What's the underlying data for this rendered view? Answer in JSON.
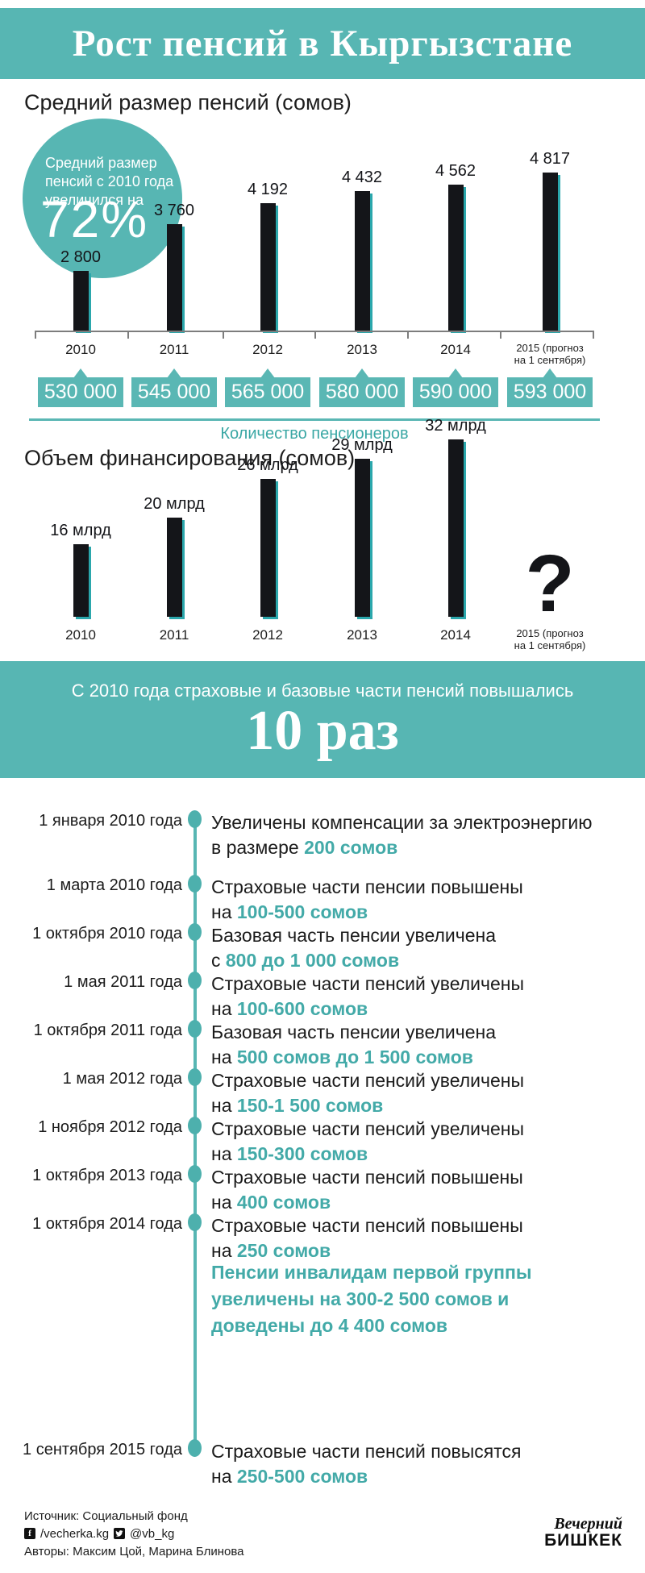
{
  "header": {
    "title": "Рост пенсий в Кыргызстане"
  },
  "colors": {
    "teal": "#57b6b3",
    "teal_accent": "#43aaa8",
    "bar_dark": "#141519",
    "bar_edge": "#2ba7ac"
  },
  "chart_data": [
    {
      "type": "bar",
      "title": "Средний размер пенсий (сомов)",
      "categories": [
        "2010",
        "2011",
        "2012",
        "2013",
        "2014",
        "2015 (прогноз\nна 1 сентября)"
      ],
      "values": [
        2800,
        3760,
        4192,
        4432,
        4562,
        4817
      ],
      "value_labels": [
        "2 800",
        "3 760",
        "4 192",
        "4 432",
        "4 562",
        "4 817"
      ],
      "annotation": {
        "text": "Средний размер\nпенсий с 2010 года\nувеличился на",
        "big": "72%"
      },
      "callouts": {
        "caption": "Количество пенсионеров",
        "values": [
          "530 000",
          "545 000",
          "565 000",
          "580 000",
          "590 000",
          "593 000"
        ]
      },
      "layout": {
        "grid": false,
        "legend": "none",
        "baseline_axis": true
      }
    },
    {
      "type": "bar",
      "title": "Объем финансирования (сомов)",
      "categories": [
        "2010",
        "2011",
        "2012",
        "2013",
        "2014",
        "2015 (прогноз\nна 1 сентября)"
      ],
      "values": [
        16,
        20,
        26,
        29,
        32,
        null
      ],
      "value_labels": [
        "16 млрд",
        "20 млрд",
        "26 млрд",
        "29 млрд",
        "32 млрд",
        "?"
      ],
      "unknown_marker": "?",
      "layout": {
        "grid": false,
        "legend": "none",
        "baseline_axis": false
      }
    }
  ],
  "banner": {
    "line1": "С 2010 года страховые и базовые части пенсий повышались",
    "line2": "10 раз"
  },
  "timeline": {
    "items": [
      {
        "date": "1 января 2010 года",
        "text": "Увеличены компенсации за электроэнергию\nв размере ",
        "accent": "200 сомов"
      },
      {
        "date": "1 марта 2010 года",
        "text": "Страховые части пенсии повышены\nна ",
        "accent": "100-500 сомов"
      },
      {
        "date": "1 октября 2010 года",
        "text": "Базовая часть пенсии увеличена\nс ",
        "accent": "800 до 1 000 сомов"
      },
      {
        "date": "1 мая 2011 года",
        "text": "Страховые части пенсий увеличены\nна ",
        "accent": "100-600 сомов"
      },
      {
        "date": "1 октября 2011 года",
        "text": "Базовая часть пенсии увеличена\nна ",
        "accent": "500 сомов до 1 500 сомов"
      },
      {
        "date": "1 мая 2012 года",
        "text": "Страховые части пенсий увеличены\nна ",
        "accent": "150-1 500 сомов"
      },
      {
        "date": "1 ноября 2012 года",
        "text": "Страховые части пенсий увеличены\nна ",
        "accent": "150-300 сомов"
      },
      {
        "date": "1 октября 2013 года",
        "text": "Страховые части пенсий повышены\nна ",
        "accent": "400 сомов"
      },
      {
        "date": "1 октября 2014 года",
        "text": "Страховые части пенсий повышены\nна ",
        "accent": "250 сомов"
      },
      {
        "date": "1 сентября 2015 года",
        "text": "Страховые части пенсий повысятся\nна ",
        "accent": "250-500 сомов"
      }
    ],
    "note": {
      "text": "Пенсии инвалидам первой группы\nувеличены на 300-2 500 сомов и\nдоведены до 4 400 сомов"
    }
  },
  "footer": {
    "source": "Источник: Социальный фонд",
    "facebook": "/vecherka.kg",
    "twitter": "@vb_kg",
    "authors": "Авторы: Максим Цой, Марина Блинова",
    "logo_line1": "Вечерний",
    "logo_line2": "БИШКЕК"
  }
}
